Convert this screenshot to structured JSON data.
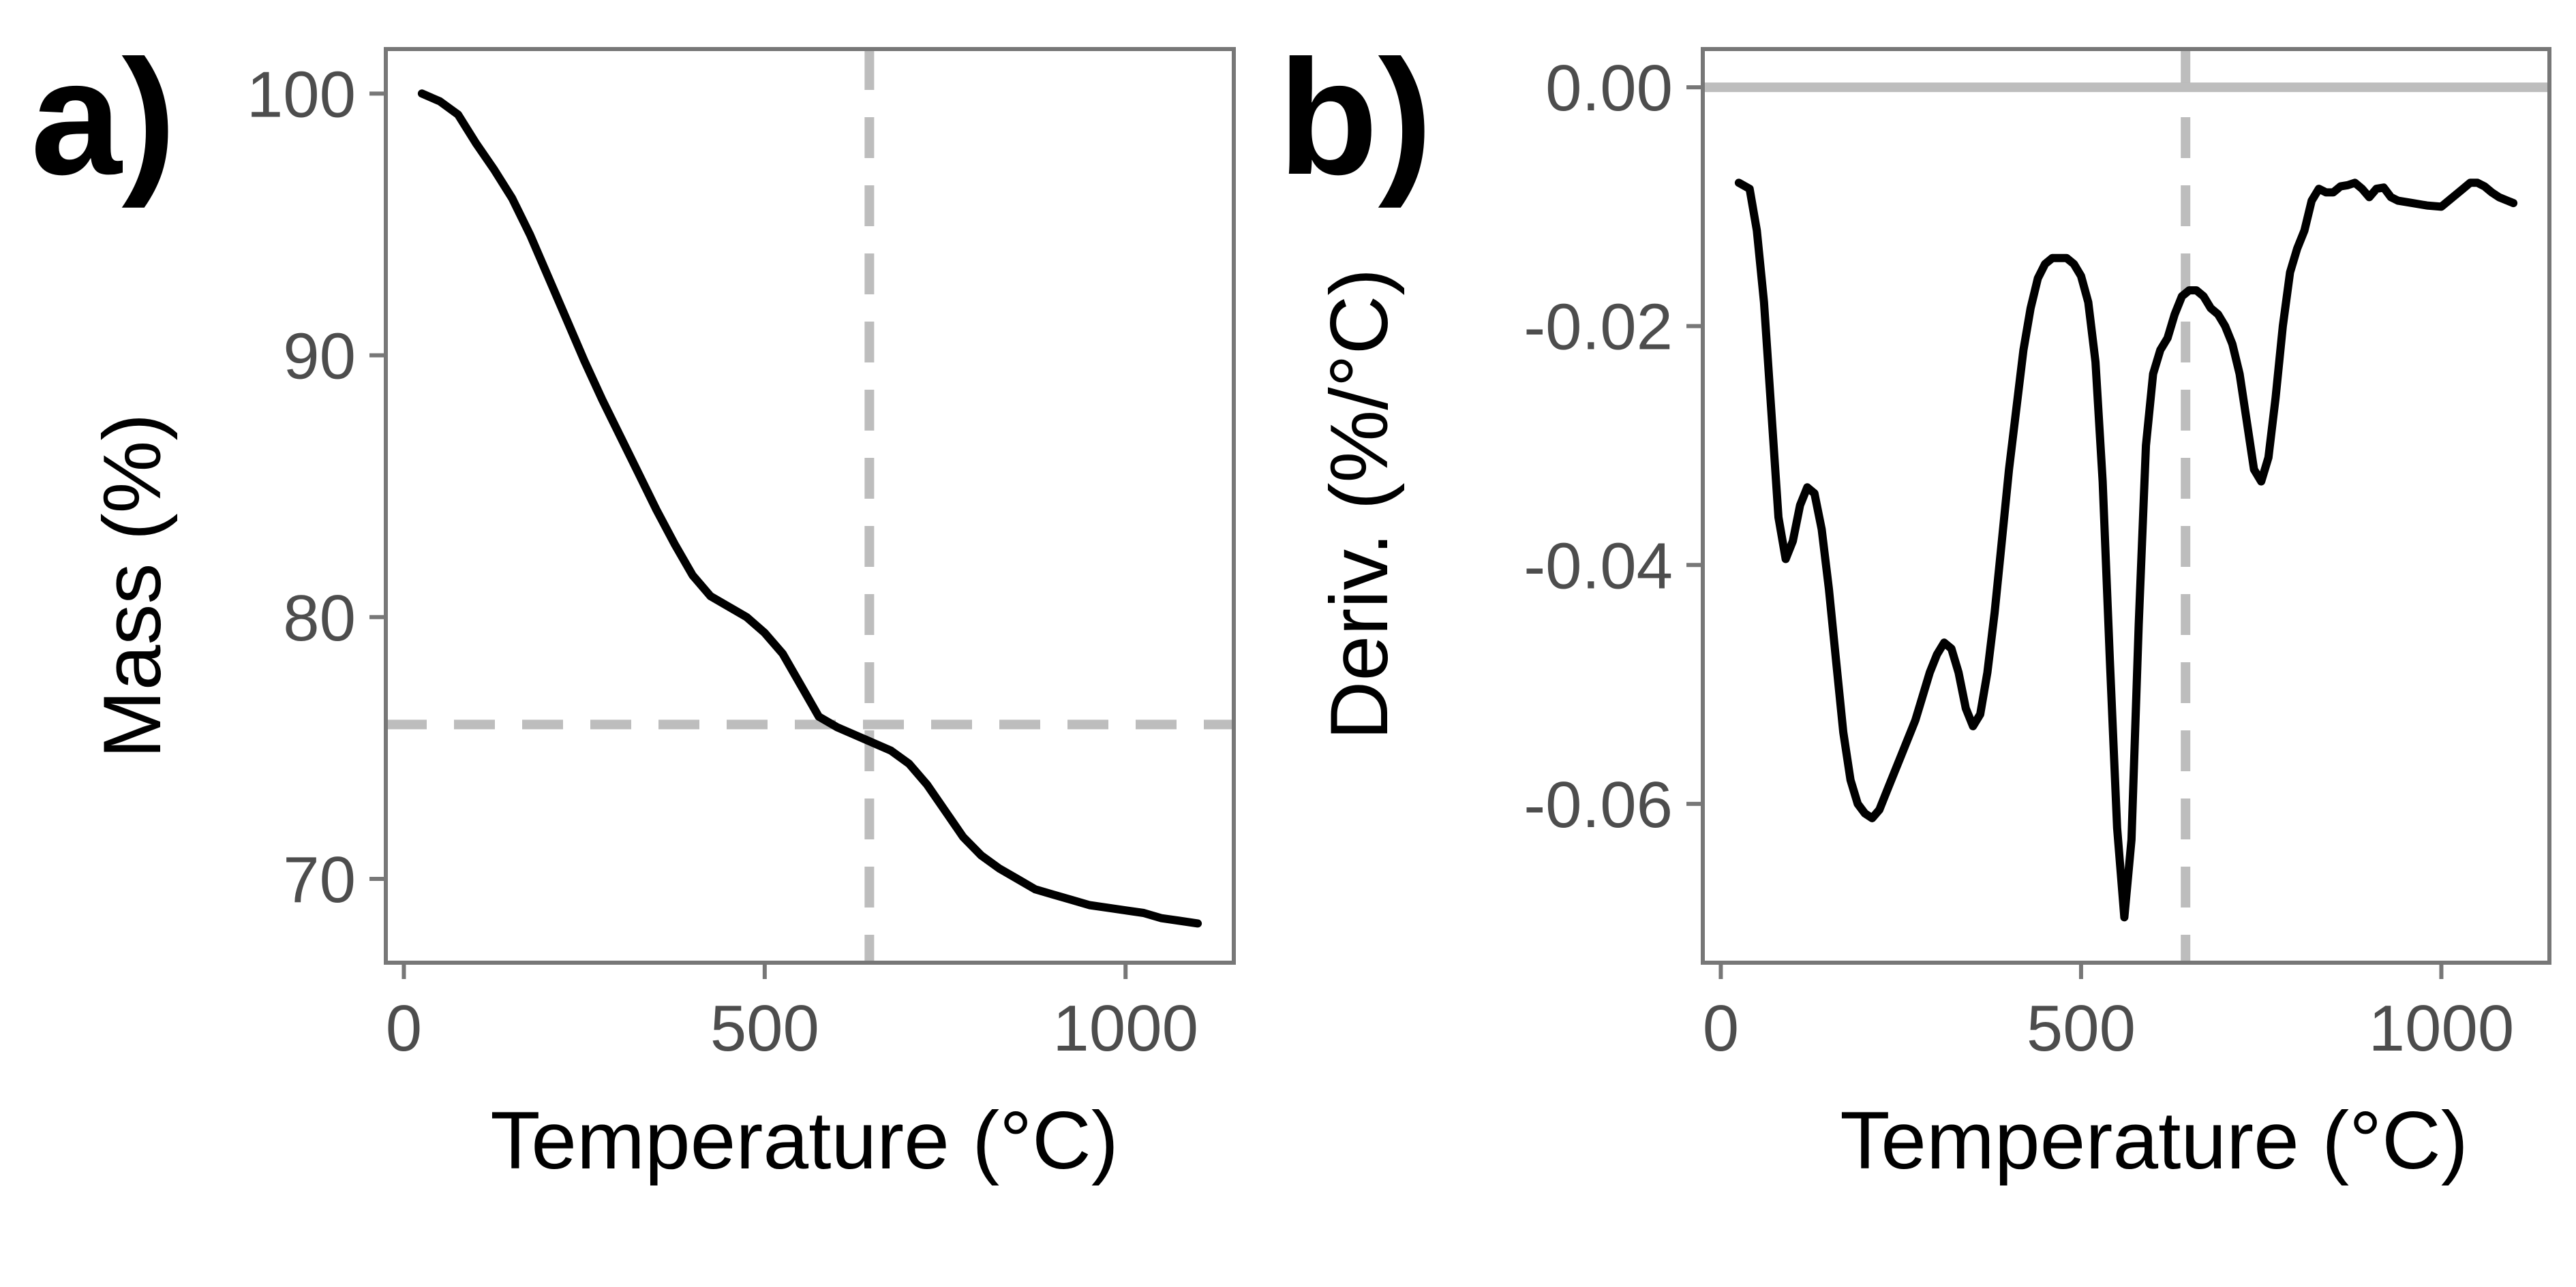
{
  "chart_data": [
    {
      "type": "line",
      "panel_label": "a)",
      "xlabel": "Temperature (°C)",
      "ylabel": "Mass (%)",
      "xlim": [
        -25,
        1150
      ],
      "ylim": [
        66.8,
        101.7
      ],
      "x_ticks": [
        0,
        500,
        1000
      ],
      "x_tick_labels": [
        "0",
        "500",
        "1000"
      ],
      "y_ticks": [
        70,
        80,
        90,
        100
      ],
      "y_tick_labels": [
        "70",
        "80",
        "90",
        "100"
      ],
      "grid": false,
      "legend": "none",
      "reference_lines": [
        {
          "orientation": "vertical",
          "value": 645,
          "style": "dashed",
          "color": "#bdbdbd"
        },
        {
          "orientation": "horizontal",
          "value": 75.9,
          "style": "dashed",
          "color": "#bdbdbd"
        }
      ],
      "series": [
        {
          "color": "#000000",
          "x": [
            25,
            50,
            75,
            100,
            125,
            150,
            175,
            200,
            225,
            250,
            275,
            300,
            325,
            350,
            375,
            400,
            425,
            450,
            475,
            500,
            525,
            550,
            575,
            600,
            625,
            650,
            675,
            700,
            725,
            750,
            775,
            800,
            825,
            850,
            875,
            900,
            925,
            950,
            975,
            1000,
            1025,
            1050,
            1075,
            1100
          ],
          "y": [
            100.0,
            99.7,
            99.2,
            98.1,
            97.1,
            96.0,
            94.6,
            93.0,
            91.4,
            89.8,
            88.3,
            86.9,
            85.5,
            84.1,
            82.8,
            81.6,
            80.8,
            80.4,
            80.0,
            79.4,
            78.6,
            77.4,
            76.2,
            75.8,
            75.5,
            75.2,
            74.9,
            74.4,
            73.6,
            72.6,
            71.6,
            70.9,
            70.4,
            70.0,
            69.6,
            69.4,
            69.2,
            69.0,
            68.9,
            68.8,
            68.7,
            68.5,
            68.4,
            68.3
          ]
        }
      ]
    },
    {
      "type": "line",
      "panel_label": "b)",
      "xlabel": "Temperature (°C)",
      "ylabel": "Deriv. (%/°C)",
      "xlim": [
        -25,
        1150
      ],
      "ylim": [
        -0.0733,
        0.0032
      ],
      "x_ticks": [
        0,
        500,
        1000
      ],
      "x_tick_labels": [
        "0",
        "500",
        "1000"
      ],
      "y_ticks": [
        -0.06,
        -0.04,
        -0.02,
        0.0
      ],
      "y_tick_labels": [
        "-0.06",
        "-0.04",
        "-0.02",
        "0.00"
      ],
      "grid": false,
      "legend": "none",
      "reference_lines": [
        {
          "orientation": "vertical",
          "value": 645,
          "style": "dashed",
          "color": "#bdbdbd"
        },
        {
          "orientation": "horizontal",
          "value": 0.0,
          "style": "solid",
          "color": "#bdbdbd"
        }
      ],
      "series": [
        {
          "color": "#000000",
          "x": [
            25,
            40,
            50,
            60,
            70,
            80,
            90,
            100,
            110,
            120,
            130,
            140,
            150,
            160,
            170,
            180,
            190,
            200,
            210,
            220,
            230,
            240,
            250,
            260,
            270,
            280,
            290,
            300,
            310,
            320,
            330,
            340,
            350,
            360,
            370,
            380,
            390,
            400,
            410,
            420,
            430,
            440,
            450,
            460,
            470,
            480,
            490,
            500,
            510,
            520,
            530,
            540,
            550,
            560,
            570,
            580,
            590,
            600,
            610,
            620,
            630,
            640,
            650,
            660,
            670,
            680,
            690,
            700,
            710,
            720,
            730,
            740,
            750,
            760,
            770,
            780,
            790,
            800,
            810,
            820,
            830,
            840,
            850,
            860,
            870,
            880,
            890,
            900,
            910,
            920,
            930,
            940,
            960,
            980,
            1000,
            1010,
            1020,
            1030,
            1040,
            1050,
            1060,
            1070,
            1080,
            1100
          ],
          "y": [
            -0.008,
            -0.0085,
            -0.012,
            -0.018,
            -0.027,
            -0.036,
            -0.0395,
            -0.038,
            -0.035,
            -0.0335,
            -0.034,
            -0.037,
            -0.042,
            -0.048,
            -0.054,
            -0.058,
            -0.06,
            -0.0608,
            -0.0612,
            -0.0605,
            -0.059,
            -0.0575,
            -0.056,
            -0.0545,
            -0.053,
            -0.051,
            -0.049,
            -0.0475,
            -0.0465,
            -0.047,
            -0.049,
            -0.052,
            -0.0535,
            -0.0525,
            -0.049,
            -0.044,
            -0.038,
            -0.032,
            -0.027,
            -0.022,
            -0.0185,
            -0.016,
            -0.0148,
            -0.0143,
            -0.0143,
            -0.0143,
            -0.0148,
            -0.0158,
            -0.018,
            -0.023,
            -0.033,
            -0.048,
            -0.062,
            -0.0695,
            -0.063,
            -0.045,
            -0.03,
            -0.024,
            -0.022,
            -0.021,
            -0.019,
            -0.0175,
            -0.017,
            -0.017,
            -0.0175,
            -0.0185,
            -0.019,
            -0.02,
            -0.0215,
            -0.024,
            -0.028,
            -0.032,
            -0.033,
            -0.031,
            -0.026,
            -0.02,
            -0.0155,
            -0.0135,
            -0.012,
            -0.0095,
            -0.0085,
            -0.0088,
            -0.0088,
            -0.0083,
            -0.0082,
            -0.008,
            -0.0085,
            -0.0092,
            -0.0085,
            -0.0084,
            -0.0092,
            -0.0095,
            -0.0097,
            -0.0099,
            -0.01,
            -0.0095,
            -0.009,
            -0.0085,
            -0.008,
            -0.008,
            -0.0083,
            -0.0088,
            -0.0092,
            -0.0097
          ]
        }
      ]
    }
  ]
}
